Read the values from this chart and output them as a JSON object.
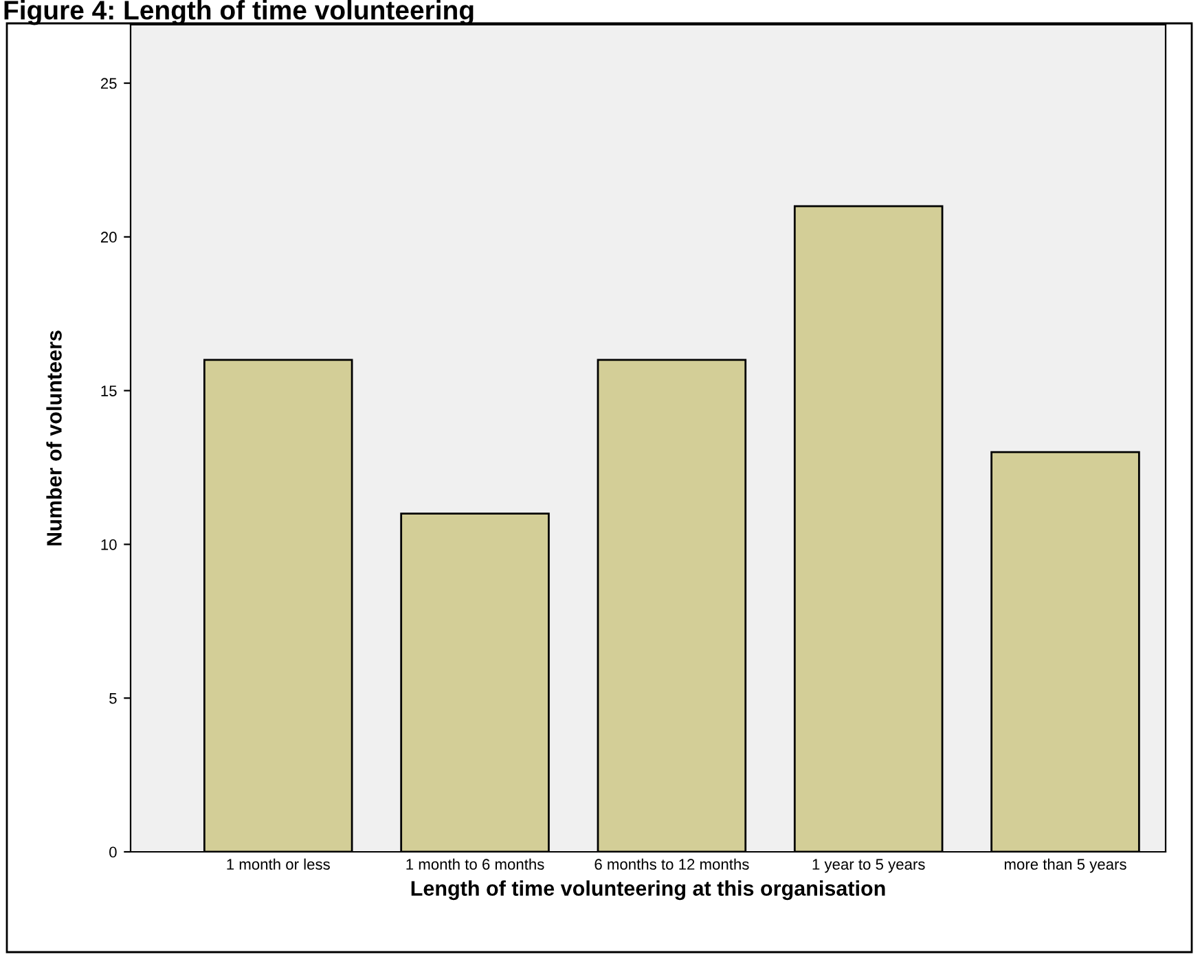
{
  "chart_data": {
    "type": "bar",
    "title": "Figure 4: Length of time volunteering",
    "xlabel": "Length of time volunteering at this organisation",
    "ylabel": "Number of volunteers",
    "categories": [
      "1 month or less",
      "1 month to 6 months",
      "6 months to 12 months",
      "1 year to 5 years",
      "more than 5 years"
    ],
    "values": [
      16,
      11,
      16,
      21,
      13
    ],
    "color": "#d3ce97",
    "ylim": [
      0,
      26.9
    ],
    "yticks": [
      0,
      5,
      10,
      15,
      20,
      25
    ],
    "grid": false
  }
}
